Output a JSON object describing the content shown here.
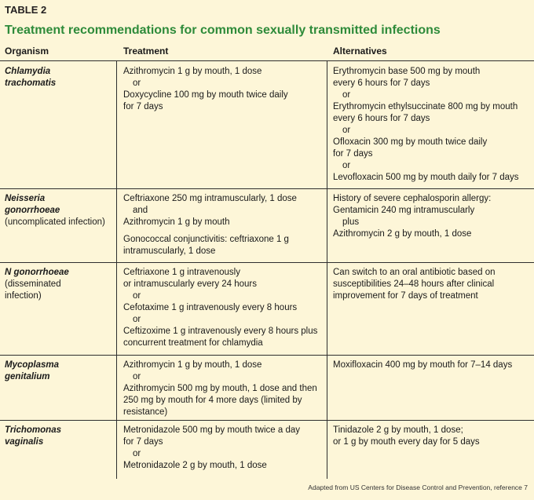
{
  "table_label": "TABLE 2",
  "title": "Treatment recommendations for common sexually transmitted infections",
  "headers": {
    "organism": "Organism",
    "treatment": "Treatment",
    "alternatives": "Alternatives"
  },
  "rows": [
    {
      "organism": [
        "Chlamydia",
        "trachomatis"
      ],
      "organism_note": [],
      "treatment": [
        {
          "text": "Azithromycin 1 g by mouth, 1 dose",
          "style": "line"
        },
        {
          "text": "or",
          "style": "or"
        },
        {
          "text": "Doxycycline 100 mg by mouth twice daily",
          "style": "line"
        },
        {
          "text": "for 7 days",
          "style": "line"
        }
      ],
      "alternatives": [
        {
          "text": "Erythromycin base 500 mg by mouth",
          "style": "line"
        },
        {
          "text": "every 6 hours for 7 days",
          "style": "line"
        },
        {
          "text": "or",
          "style": "or"
        },
        {
          "text": "Erythromycin ethylsuccinate 800 mg by mouth",
          "style": "line"
        },
        {
          "text": "every 6 hours for 7 days",
          "style": "line"
        },
        {
          "text": "or",
          "style": "or"
        },
        {
          "text": "Ofloxacin 300 mg by mouth twice daily",
          "style": "line"
        },
        {
          "text": "for 7 days",
          "style": "line"
        },
        {
          "text": "or",
          "style": "or"
        },
        {
          "text": "Levofloxacin 500 mg by mouth daily for 7 days",
          "style": "line"
        }
      ]
    },
    {
      "organism": [
        "Neisseria",
        "gonorrhoeae"
      ],
      "organism_note": [
        "(uncomplicated infection)"
      ],
      "treatment": [
        {
          "text": "Ceftriaxone 250 mg intramuscularly, 1 dose",
          "style": "line"
        },
        {
          "text": "and",
          "style": "or"
        },
        {
          "text": "Azithromycin 1 g by mouth",
          "style": "line"
        },
        {
          "text": "",
          "style": "gap"
        },
        {
          "text": "Gonococcal conjunctivitis: ceftriaxone 1 g",
          "style": "line"
        },
        {
          "text": "intramuscularly, 1 dose",
          "style": "line"
        }
      ],
      "alternatives": [
        {
          "text": "History of severe cephalosporin allergy:",
          "style": "line"
        },
        {
          "text": "Gentamicin 240 mg  intramuscularly",
          "style": "line"
        },
        {
          "text": "plus",
          "style": "or"
        },
        {
          "text": "Azithromycin 2 g by mouth, 1 dose",
          "style": "line"
        }
      ]
    },
    {
      "organism": [
        "N gonorrhoeae"
      ],
      "organism_note": [
        "(disseminated",
        "infection)"
      ],
      "treatment": [
        {
          "text": "Ceftriaxone 1 g intravenously",
          "style": "line"
        },
        {
          "text": "or intramuscularly every 24 hours",
          "style": "line"
        },
        {
          "text": "or",
          "style": "or"
        },
        {
          "text": "Cefotaxime 1 g intravenously every 8 hours",
          "style": "line"
        },
        {
          "text": "or",
          "style": "or"
        },
        {
          "text": "Ceftizoxime 1 g intravenously every 8 hours plus",
          "style": "line"
        },
        {
          "text": "concurrent treatment for chlamydia",
          "style": "line"
        }
      ],
      "alternatives": [
        {
          "text": "Can switch to an oral antibiotic based on",
          "style": "line"
        },
        {
          "text": "susceptibilities 24–48 hours after clinical",
          "style": "line"
        },
        {
          "text": "improvement for 7 days of treatment",
          "style": "line"
        }
      ]
    },
    {
      "organism": [
        "Mycoplasma",
        "genitalium"
      ],
      "organism_note": [],
      "treatment": [
        {
          "text": "Azithromycin 1 g by mouth, 1 dose",
          "style": "line"
        },
        {
          "text": "or",
          "style": "or"
        },
        {
          "text": "Azithromycin 500 mg by mouth, 1 dose and then",
          "style": "line"
        },
        {
          "text": "250 mg by mouth for 4 more days (limited by",
          "style": "line"
        },
        {
          "text": "resistance)",
          "style": "line"
        }
      ],
      "alternatives": [
        {
          "text": "Moxifloxacin 400 mg by mouth for 7–14 days",
          "style": "line"
        }
      ]
    },
    {
      "organism": [
        "Trichomonas",
        "vaginalis"
      ],
      "organism_note": [],
      "treatment": [
        {
          "text": "Metronidazole 500 mg by mouth twice a day",
          "style": "line"
        },
        {
          "text": "for 7 days",
          "style": "line"
        },
        {
          "text": "or",
          "style": "or"
        },
        {
          "text": "Metronidazole 2 g by mouth, 1 dose",
          "style": "line"
        }
      ],
      "alternatives": [
        {
          "text": "Tinidazole 2 g by mouth, 1 dose;",
          "style": "line"
        },
        {
          "text": "or 1 g by mouth every day for 5 days",
          "style": "line"
        }
      ]
    }
  ],
  "source_note": "Adapted from US Centers for Disease Control and Prevention, reference 7",
  "colors": {
    "background": "#fdf6d8",
    "title": "#2e8b3a",
    "rules": "#2e2e2e"
  }
}
